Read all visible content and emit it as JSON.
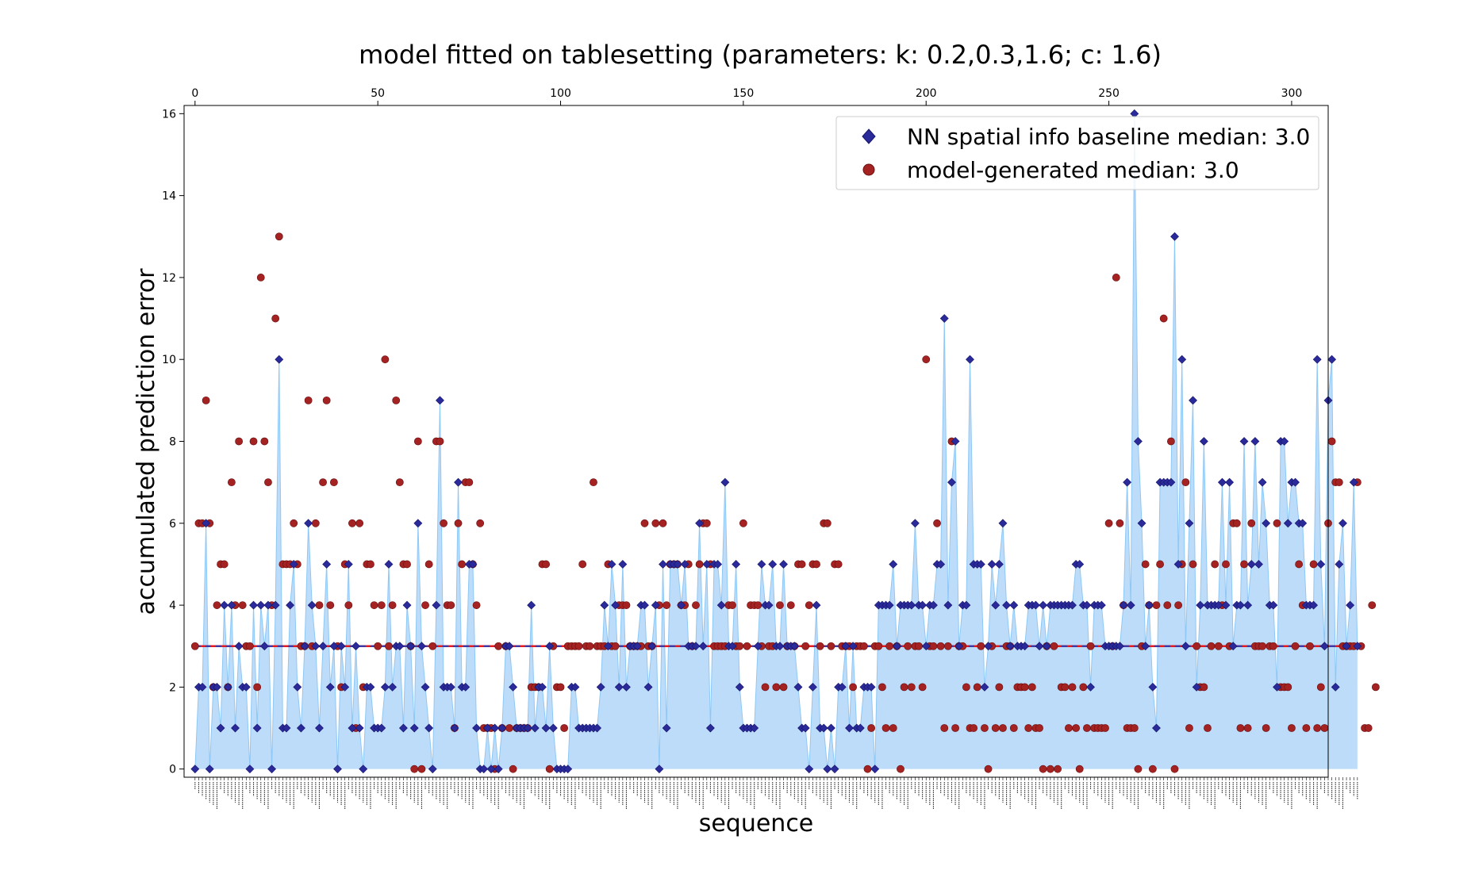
{
  "chart_data": {
    "type": "scatter",
    "title": "model fitted on tablesetting (parameters: k: 0.2,0.3,1.6; c: 1.6)",
    "xlabel": "sequence",
    "ylabel": "accumulated prediction error",
    "xlim_top": [
      -3,
      310
    ],
    "ylim": [
      -0.2,
      16.2
    ],
    "yticks": [
      0,
      2,
      4,
      6,
      8,
      10,
      12,
      14,
      16
    ],
    "xticks_top": [
      0,
      50,
      100,
      150,
      200,
      250,
      300
    ],
    "grid": false,
    "legend_position": "top-right",
    "median_line": 3.0,
    "colors": {
      "baseline_marker": "#2a2a9a",
      "baseline_fill": "#bcdcfa",
      "baseline_line": "#8ec8f6",
      "model_marker": "#a52222",
      "median_line_red": "#e41a1c",
      "median_line_blue": "#1f3fbf"
    },
    "series": [
      {
        "name": "NN spatial info baseline median: 3.0",
        "marker": "diamond",
        "values": [
          0,
          2,
          2,
          6,
          0,
          2,
          2,
          1,
          4,
          2,
          4,
          1,
          3,
          2,
          2,
          0,
          4,
          1,
          4,
          3,
          4,
          0,
          4,
          10,
          1,
          1,
          4,
          5,
          2,
          1,
          3,
          6,
          4,
          3,
          1,
          3,
          5,
          2,
          3,
          0,
          3,
          2,
          5,
          1,
          3,
          1,
          0,
          2,
          2,
          1,
          1,
          1,
          2,
          5,
          2,
          3,
          3,
          1,
          4,
          3,
          1,
          6,
          3,
          2,
          1,
          0,
          4,
          9,
          2,
          2,
          2,
          1,
          7,
          2,
          2,
          5,
          5,
          1,
          0,
          0,
          1,
          0,
          1,
          0,
          1,
          3,
          3,
          2,
          1,
          1,
          1,
          1,
          4,
          1,
          2,
          2,
          1,
          3,
          1,
          0,
          0,
          0,
          0,
          2,
          2,
          1,
          1,
          1,
          1,
          1,
          1,
          2,
          4,
          3,
          5,
          4,
          2,
          5,
          2,
          3,
          3,
          3,
          4,
          4,
          2,
          3,
          4,
          0,
          5,
          1,
          5,
          5,
          5,
          4,
          5,
          3,
          3,
          3,
          6,
          3,
          5,
          1,
          5,
          5,
          4,
          7,
          3,
          3,
          5,
          2,
          1,
          1,
          1,
          1,
          3,
          5,
          4,
          4,
          5,
          3,
          3,
          5,
          3,
          3,
          3,
          2,
          1,
          1,
          0,
          2,
          4,
          1,
          1,
          0,
          1,
          0,
          2,
          2,
          3,
          1,
          3,
          1,
          1,
          2,
          2,
          2,
          0,
          4,
          4,
          4,
          4,
          5,
          3,
          4,
          4,
          4,
          4,
          6,
          4,
          4,
          3,
          4,
          4,
          5,
          5,
          11,
          4,
          7,
          8,
          3,
          4,
          4,
          10,
          5,
          5,
          5,
          2,
          3,
          5,
          4,
          5,
          6,
          4,
          3,
          4,
          3,
          3,
          3,
          4,
          4,
          4,
          3,
          4,
          3,
          4,
          4,
          4,
          4,
          4,
          4,
          4,
          5,
          5,
          4,
          4,
          2,
          4,
          4,
          4,
          3,
          3,
          3,
          3,
          3,
          4,
          7,
          4,
          16,
          8,
          6,
          3,
          4,
          2,
          1,
          7,
          7,
          7,
          7,
          13,
          5,
          10,
          3,
          6,
          9,
          2,
          4,
          8,
          4,
          4,
          4,
          4,
          7,
          4,
          7,
          3,
          4,
          4,
          8,
          4,
          5,
          8,
          5,
          7,
          6,
          4,
          4,
          2,
          8,
          8,
          6,
          7,
          7,
          6,
          6,
          4,
          4,
          4,
          10,
          5,
          3,
          9,
          10,
          2,
          5,
          6,
          3,
          4,
          7,
          3
        ]
      },
      {
        "name": "model-generated median: 3.0",
        "marker": "circle",
        "values": [
          3,
          6,
          6,
          9,
          6,
          2,
          4,
          5,
          5,
          2,
          7,
          4,
          8,
          4,
          3,
          3,
          8,
          2,
          12,
          8,
          7,
          4,
          11,
          13,
          5,
          5,
          5,
          6,
          5,
          3,
          3,
          9,
          3,
          6,
          4,
          7,
          9,
          4,
          7,
          3,
          2,
          5,
          4,
          6,
          1,
          6,
          2,
          5,
          5,
          4,
          3,
          4,
          10,
          3,
          4,
          9,
          7,
          5,
          5,
          3,
          0,
          8,
          0,
          4,
          5,
          3,
          8,
          8,
          6,
          4,
          4,
          1,
          6,
          5,
          7,
          7,
          5,
          4,
          6,
          1,
          1,
          1,
          0,
          3,
          1,
          3,
          1,
          0,
          1,
          1,
          1,
          1,
          2,
          2,
          2,
          5,
          5,
          0,
          3,
          2,
          2,
          1,
          3,
          3,
          3,
          3,
          5,
          3,
          3,
          7,
          3,
          3,
          3,
          5,
          3,
          3,
          4,
          4,
          4,
          3,
          3,
          3,
          3,
          6,
          3,
          3,
          6,
          4,
          6,
          4,
          5,
          5,
          5,
          4,
          4,
          5,
          3,
          4,
          5,
          6,
          6,
          5,
          3,
          3,
          3,
          3,
          4,
          4,
          3,
          3,
          6,
          3,
          4,
          4,
          4,
          3,
          2,
          3,
          3,
          2,
          4,
          2,
          3,
          4,
          3,
          5,
          5,
          3,
          4,
          5,
          5,
          3,
          6,
          6,
          3,
          5,
          5,
          3,
          3,
          3,
          2,
          3,
          3,
          3,
          0,
          1,
          3,
          3,
          2,
          1,
          3,
          1,
          3,
          0,
          2,
          3,
          2,
          3,
          3,
          2,
          10,
          3,
          3,
          6,
          3,
          1,
          3,
          8,
          1,
          3,
          3,
          2,
          1,
          1,
          2,
          3,
          1,
          0,
          3,
          1,
          2,
          1,
          3,
          3,
          1,
          2,
          2,
          2,
          1,
          2,
          1,
          1,
          0,
          3,
          0,
          3,
          0,
          2,
          2,
          1,
          2,
          1,
          0,
          2,
          1,
          3,
          1,
          1,
          1,
          1,
          6,
          3,
          12,
          6,
          4,
          1,
          1,
          1,
          0,
          3,
          5,
          4,
          0,
          4,
          5,
          11,
          4,
          8,
          0,
          4,
          5,
          7,
          1,
          5,
          3,
          2,
          2,
          1,
          3,
          5,
          3,
          4,
          5,
          3,
          6,
          6,
          1,
          5,
          1,
          6,
          3,
          3,
          3,
          1,
          3,
          3,
          6,
          2,
          2,
          2,
          1,
          3,
          5,
          4,
          1,
          3,
          5,
          1,
          2,
          1,
          6,
          8,
          7,
          7,
          3,
          3,
          3,
          3,
          7,
          3,
          1,
          1,
          4,
          2
        ]
      }
    ]
  }
}
